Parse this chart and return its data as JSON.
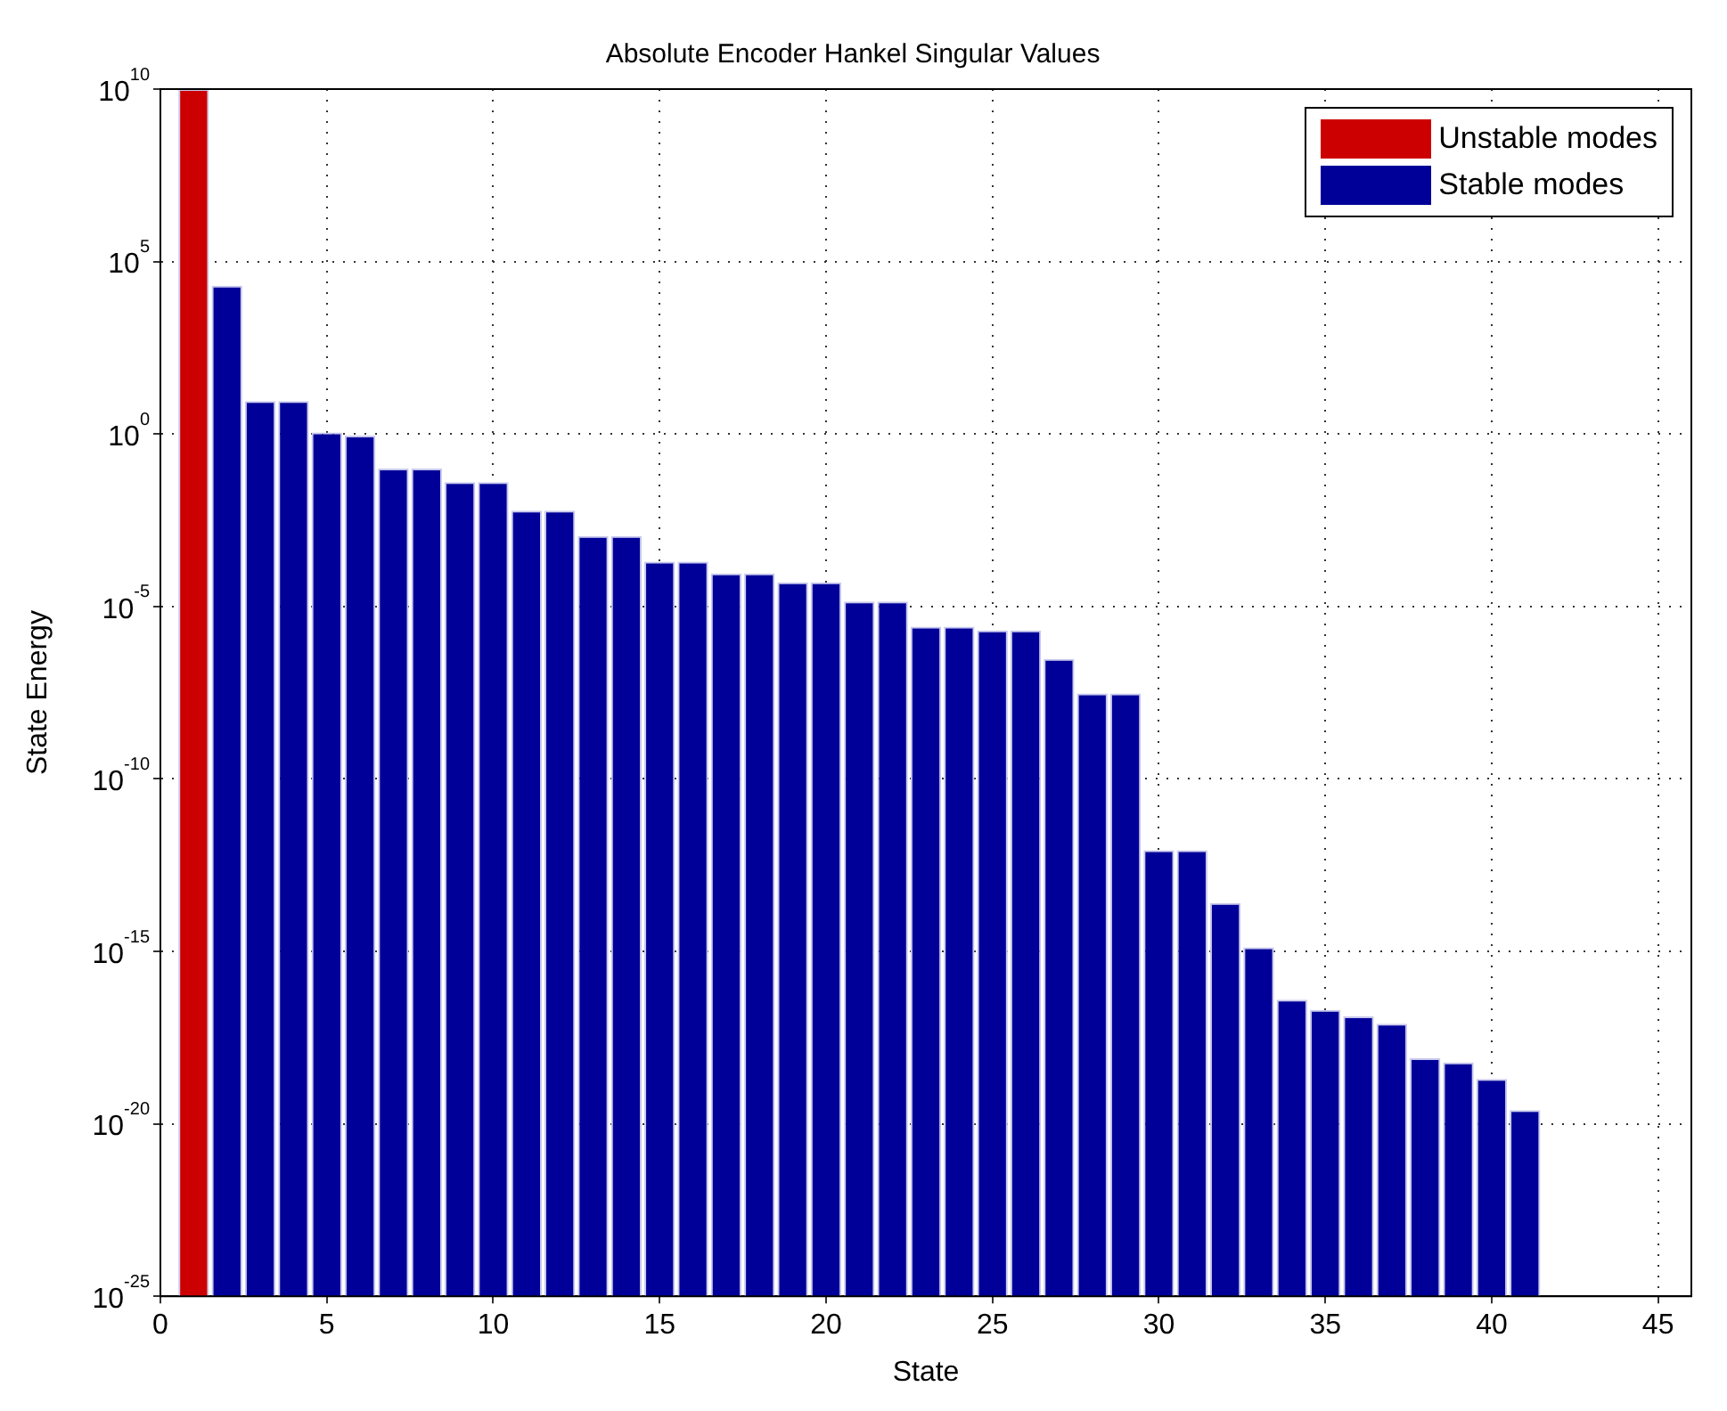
{
  "chart_data": {
    "type": "bar",
    "title": "Absolute Encoder Hankel Singular Values",
    "xlabel": "State",
    "ylabel": "State Energy",
    "x": [
      1,
      2,
      3,
      4,
      5,
      6,
      7,
      8,
      9,
      10,
      11,
      12,
      13,
      14,
      15,
      16,
      17,
      18,
      19,
      20,
      21,
      22,
      23,
      24,
      25,
      26,
      27,
      28,
      29,
      30,
      31,
      32,
      33,
      34,
      35,
      36,
      37,
      38,
      39,
      40,
      41
    ],
    "series": [
      {
        "name": "Unstable modes",
        "color": "#cc0000",
        "values": [
          10000000000.0,
          null,
          null,
          null,
          null,
          null,
          null,
          null,
          null,
          null,
          null,
          null,
          null,
          null,
          null,
          null,
          null,
          null,
          null,
          null,
          null,
          null,
          null,
          null,
          null,
          null,
          null,
          null,
          null,
          null,
          null,
          null,
          null,
          null,
          null,
          null,
          null,
          null,
          null,
          null,
          null
        ]
      },
      {
        "name": "Stable modes",
        "color": "#000099",
        "values": [
          null,
          20000.0,
          9,
          9,
          1.1,
          0.9,
          0.1,
          0.1,
          0.04,
          0.04,
          0.006,
          0.006,
          0.0011,
          0.0011,
          0.0002,
          0.0002,
          9e-05,
          9e-05,
          5e-05,
          5e-05,
          1.4e-05,
          1.4e-05,
          2.6e-06,
          2.6e-06,
          2e-06,
          2e-06,
          3e-07,
          3e-08,
          3e-08,
          8.5e-13,
          8.5e-13,
          2.5e-14,
          1.3e-15,
          4e-17,
          2e-17,
          1.3e-17,
          8e-18,
          8e-19,
          6e-19,
          2e-19,
          2.5e-20
        ]
      }
    ],
    "xlim": [
      0,
      46
    ],
    "xticks": [
      0,
      5,
      10,
      15,
      20,
      25,
      30,
      35,
      40,
      45
    ],
    "ylim": [
      1e-25,
      10000000000.0
    ],
    "yticks": [
      {
        "value": 1e-25,
        "label": "10$^{-25}$"
      },
      {
        "value": 1e-20,
        "label": "10$^{-20}$"
      },
      {
        "value": 1e-15,
        "label": "10$^{-15}$"
      },
      {
        "value": 1e-10,
        "label": "10$^{-10}$"
      },
      {
        "value": 1e-05,
        "label": "10$^{-5}$"
      },
      {
        "value": 1,
        "label": "10$^{0}$"
      },
      {
        "value": 100000.0,
        "label": "10$^{5}$"
      },
      {
        "value": 10000000000.0,
        "label": "10$^{10}$"
      }
    ],
    "log": "y",
    "grid": true,
    "legend": "top right"
  }
}
